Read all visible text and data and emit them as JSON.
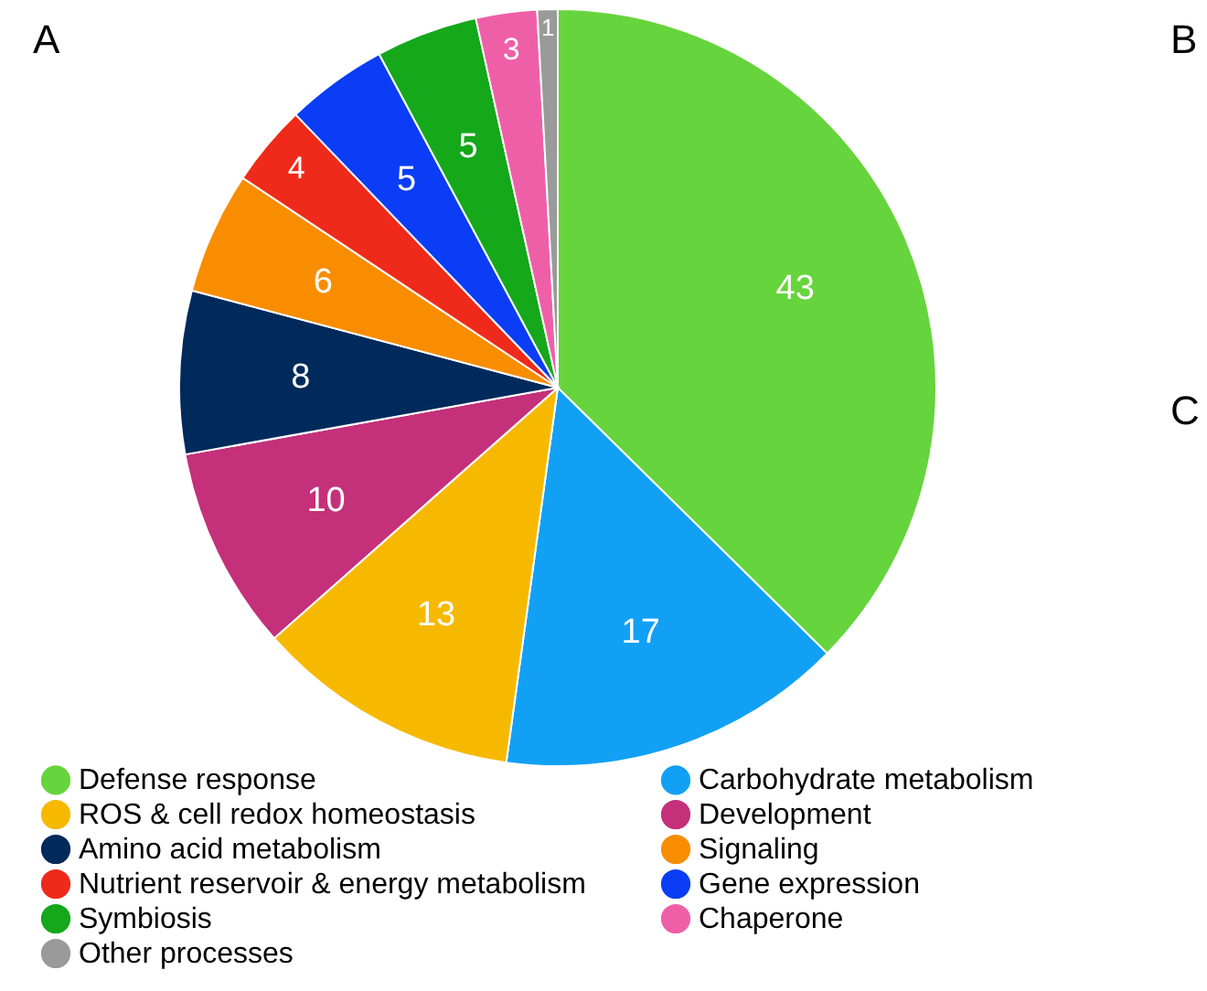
{
  "chart_data": {
    "type": "pie",
    "categories": [
      "Defense response",
      "Carbohydrate metabolism",
      "ROS & cell redox homeostasis",
      "Development",
      "Amino acid metabolism",
      "Signaling",
      "Nutrient reservoir & energy metabolism",
      "Gene expression",
      "Symbiosis",
      "Chaperone",
      "Other processes"
    ],
    "values": [
      43,
      17,
      13,
      10,
      8,
      6,
      4,
      5,
      5,
      3,
      1
    ],
    "colors": [
      "#66d43c",
      "#12a0f5",
      "#f7b900",
      "#c4307a",
      "#002a5c",
      "#f98d00",
      "#ef2a1a",
      "#0a3df5",
      "#14a81a",
      "#ef5fa8",
      "#9a9a9a"
    ],
    "data_labels": true,
    "legend": "bottom",
    "annotations": [
      "A",
      "B",
      "C"
    ]
  }
}
